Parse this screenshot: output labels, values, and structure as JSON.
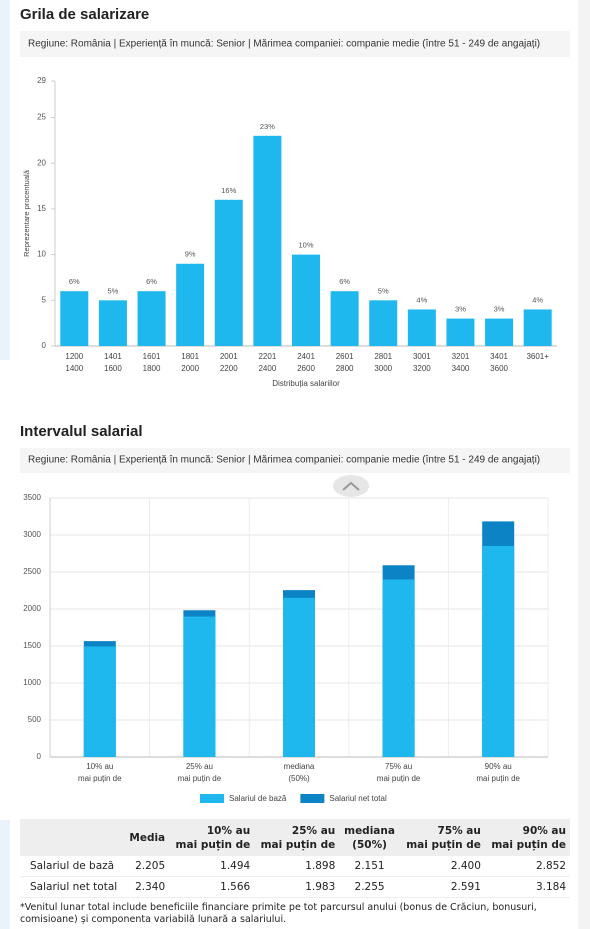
{
  "chart_data": [
    {
      "type": "bar",
      "title": "Grila de salarizare",
      "subtitle": "Regiune: România | Experiență în muncă: Senior | Mărimea companiei: companie medie (între 51 - 249 de angajați)",
      "ylabel": "Reprezentare procentuală",
      "xlabel": "Distribuția salariilor",
      "categories": [
        [
          "1200",
          "1400"
        ],
        [
          "1401",
          "1600"
        ],
        [
          "1601",
          "1800"
        ],
        [
          "1801",
          "2000"
        ],
        [
          "2001",
          "2200"
        ],
        [
          "2201",
          "2400"
        ],
        [
          "2401",
          "2600"
        ],
        [
          "2601",
          "2800"
        ],
        [
          "2801",
          "3000"
        ],
        [
          "3001",
          "3200"
        ],
        [
          "3201",
          "3400"
        ],
        [
          "3401",
          "3600"
        ],
        [
          "3601+"
        ]
      ],
      "values": [
        6,
        5,
        6,
        9,
        16,
        23,
        10,
        6,
        5,
        4,
        3,
        3,
        4
      ],
      "value_labels": [
        "6%",
        "5%",
        "6%",
        "9%",
        "16%",
        "23%",
        "10%",
        "6%",
        "5%",
        "4%",
        "3%",
        "3%",
        "4%"
      ],
      "color": "#1fb8ee",
      "ylim": [
        0,
        29
      ],
      "yticks": [
        0,
        5,
        10,
        15,
        20,
        25,
        29
      ],
      "grid": false
    },
    {
      "type": "bar",
      "bar_mode": "overlay",
      "title": "Intervalul salarial",
      "subtitle": "Regiune: România | Experiență în muncă: Senior | Mărimea companiei: companie medie (între 51 - 249 de angajați)",
      "categories": [
        [
          "10% au",
          "mai puțin de"
        ],
        [
          "25% au",
          "mai puțin de"
        ],
        [
          "mediana",
          "(50%)"
        ],
        [
          "75% au",
          "mai puțin de"
        ],
        [
          "90% au",
          "mai puțin de"
        ]
      ],
      "series": [
        {
          "name": "Salariul de bază",
          "color": "#1fb8ee",
          "values": [
            1494,
            1898,
            2151,
            2400,
            2852
          ]
        },
        {
          "name": "Salariul net total",
          "color": "#0c83c4",
          "values": [
            1566,
            1983,
            2255,
            2591,
            3184
          ]
        }
      ],
      "ylim": [
        0,
        3500
      ],
      "yticks": [
        0,
        500,
        1000,
        1500,
        2000,
        2500,
        3000,
        3500
      ],
      "grid": true,
      "legend": "bottom"
    }
  ],
  "table": {
    "columns": [
      [
        "Media"
      ],
      [
        "10% au",
        "mai puțin de"
      ],
      [
        "25% au",
        "mai puțin de"
      ],
      [
        "mediana",
        "(50%)"
      ],
      [
        "75% au",
        "mai puțin de"
      ],
      [
        "90% au",
        "mai puțin de"
      ]
    ],
    "rows": [
      [
        "Salariul de bază",
        "2.205",
        "1.494",
        "1.898",
        "2.151",
        "2.400",
        "2.852"
      ],
      [
        "Salariul net total",
        "2.340",
        "1.566",
        "1.983",
        "2.255",
        "2.591",
        "3.184"
      ]
    ]
  },
  "footnote": "*Venitul lunar total include beneficiile financiare primite pe tot parcursul anului (bonus de Crăciun, bonusuri, comisioane) și componenta variabilă lunară a salariului."
}
